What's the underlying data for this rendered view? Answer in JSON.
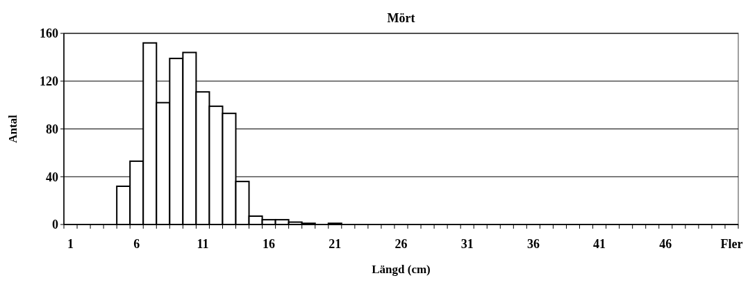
{
  "chart_data": {
    "type": "bar",
    "title": "Mört",
    "xlabel": "Längd (cm)",
    "ylabel": "Antal",
    "x": [
      1,
      2,
      3,
      4,
      5,
      6,
      7,
      8,
      9,
      10,
      11,
      12,
      13,
      14,
      15,
      16,
      17,
      18,
      19,
      20,
      21,
      22,
      23,
      24,
      25,
      26,
      27,
      28,
      29,
      30,
      31,
      32,
      33,
      34,
      35,
      36,
      37,
      38,
      39,
      40,
      41,
      42,
      43,
      44,
      45,
      46,
      47,
      48,
      49,
      50,
      51
    ],
    "values": [
      0,
      0,
      0,
      0,
      32,
      53,
      152,
      102,
      139,
      144,
      111,
      99,
      93,
      36,
      7,
      4,
      4,
      2,
      1,
      0,
      1,
      0,
      0,
      0,
      0,
      0,
      0,
      0,
      0,
      0,
      0,
      0,
      0,
      0,
      0,
      0,
      0,
      0,
      0,
      0,
      0,
      0,
      0,
      0,
      0,
      0,
      0,
      0,
      0,
      0,
      0
    ],
    "color": "#ffffff",
    "xlim": [
      0.5,
      51.5
    ],
    "xticks": [
      1,
      6,
      11,
      16,
      21,
      26,
      31,
      36,
      41,
      46,
      {
        "value": 51,
        "label": "Fler"
      }
    ],
    "ylim": [
      0,
      160
    ],
    "yticks": [
      0,
      40,
      80,
      120,
      160
    ],
    "grid": "y"
  }
}
